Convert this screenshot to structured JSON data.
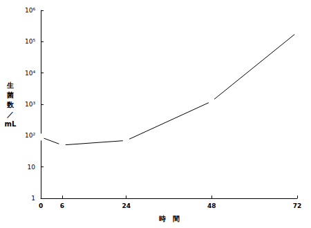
{
  "chart_data": {
    "type": "line",
    "x_label": "時　間",
    "y_label": "生\n菌\n数\n／\nmL",
    "x": [
      0,
      6,
      24,
      48,
      72
    ],
    "values": [
      90,
      50,
      70,
      1250,
      200000
    ],
    "xlim": [
      0,
      72
    ],
    "xticks": [
      0,
      6,
      24,
      48,
      72
    ],
    "ylim": [
      1,
      1000000
    ],
    "yticks": [
      1,
      10,
      {
        "value": 100,
        "label": "10²"
      },
      {
        "value": 1000,
        "label": "10³"
      },
      {
        "value": 10000,
        "label": "10⁴"
      },
      {
        "value": 100000,
        "label": "10⁵"
      },
      {
        "value": 1000000,
        "label": "10⁶"
      }
    ],
    "log": "y",
    "grid": false,
    "color": "#000000",
    "marker": "circle"
  }
}
